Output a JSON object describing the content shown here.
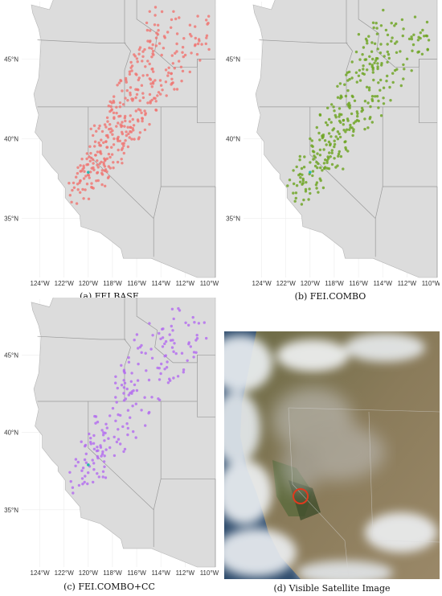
{
  "panels": [
    {
      "id": "a",
      "caption": "(a) FEI.BASE",
      "point_color": "#f07470",
      "lat_ticks": [
        "45°N",
        "40°N",
        "35°N"
      ],
      "lon_ticks": [
        "124°W",
        "122°W",
        "120°W",
        "118°W",
        "116°W",
        "114°W",
        "112°W",
        "110°W"
      ]
    },
    {
      "id": "b",
      "caption": "(b) FEI.COMBO",
      "point_color": "#6aa31d",
      "lat_ticks": [
        "45°N",
        "40°N",
        "35°N"
      ],
      "lon_ticks": [
        "124°W",
        "122°W",
        "120°W",
        "118°W",
        "116°W",
        "114°W",
        "112°W",
        "110°W"
      ]
    },
    {
      "id": "c",
      "caption": "(c) FEI.COMBO+CC",
      "point_color": "#b36af0",
      "lat_ticks": [
        "45°N",
        "40°N",
        "35°N"
      ],
      "lon_ticks": [
        "124°W",
        "122°W",
        "120°W",
        "118°W",
        "116°W",
        "114°W",
        "112°W",
        "110°W"
      ]
    },
    {
      "id": "d",
      "caption": "(d) Visible Satellite Image",
      "marker_color": "#e03a1e"
    }
  ],
  "colors": {
    "land": "#dcdcdc",
    "border": "#9a9a9a",
    "grid": "#ececec",
    "fire_marker": "#2ab7b0"
  }
}
